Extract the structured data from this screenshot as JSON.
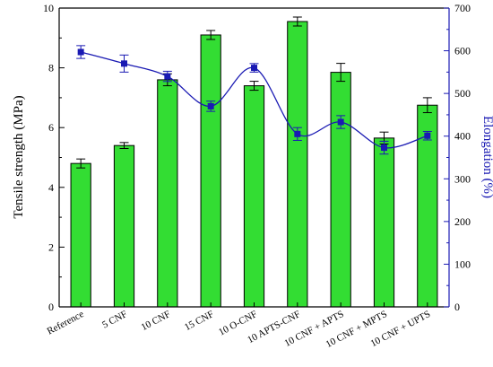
{
  "chart_data": {
    "type": "bar",
    "categories": [
      "Reference",
      "5 CNF",
      "10 CNF",
      "15 CNF",
      "10 O-CNF",
      "10 APTS-CNF",
      "10 CNF + APTS",
      "10 CNF + MPTS",
      "10 CNF + UPTS"
    ],
    "series": [
      {
        "values": [
          4.8,
          5.4,
          7.6,
          9.1,
          7.4,
          9.55,
          7.85,
          5.65,
          6.75
        ],
        "errors": [
          0.15,
          0.1,
          0.2,
          0.15,
          0.15,
          0.15,
          0.3,
          0.2,
          0.25
        ],
        "axis": "left",
        "type": "bar"
      },
      {
        "values": [
          597,
          570,
          540,
          470,
          560,
          405,
          433,
          373,
          401
        ],
        "errors": [
          15,
          20,
          12,
          12,
          10,
          15,
          15,
          15,
          10
        ],
        "axis": "right",
        "type": "line"
      }
    ],
    "ylabel": "Tensile strength (MPa)",
    "ylabel_right": "Elongation (%)",
    "ylim": [
      0,
      10
    ],
    "ylim_right": [
      0,
      700
    ],
    "yticks": [
      0,
      2,
      4,
      6,
      8,
      10
    ],
    "yticks_right": [
      0,
      100,
      200,
      300,
      400,
      500,
      600,
      700
    ],
    "grid": false,
    "colors": {
      "bar_fill": "#33dd33",
      "bar_stroke": "#000000",
      "line": "#1a1ab3",
      "marker": "#1a1ab3"
    }
  }
}
